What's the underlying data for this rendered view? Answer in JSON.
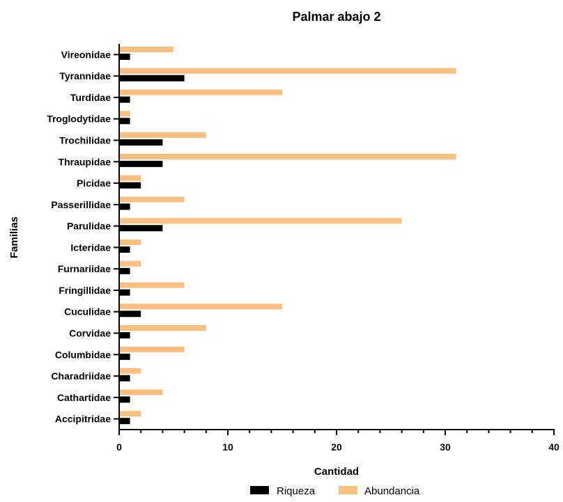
{
  "chart_data": {
    "type": "bar",
    "orientation": "horizontal",
    "title": "Palmar abajo 2",
    "xlabel": "Cantidad",
    "ylabel": "Familias",
    "xlim": [
      0,
      40
    ],
    "xticks": [
      0,
      10,
      20,
      30,
      40
    ],
    "grid": false,
    "legend_position": "bottom",
    "categories": [
      "Vireonidae",
      "Tyrannidae",
      "Turdidae",
      "Troglodytidae",
      "Trochilidae",
      "Thraupidae",
      "Picidae",
      "Passerillidae",
      "Parulidae",
      "Icteridae",
      "Furnariidae",
      "Fringillidae",
      "Cuculidae",
      "Corvidae",
      "Columbidae",
      "Charadriidae",
      "Cathartidae",
      "Accipitridae"
    ],
    "series": [
      {
        "name": "Riqueza",
        "color": "#000000",
        "values": [
          1,
          6,
          1,
          1,
          4,
          4,
          2,
          1,
          4,
          1,
          1,
          1,
          2,
          1,
          1,
          1,
          1,
          1
        ]
      },
      {
        "name": "Abundancia",
        "color": "#FDBF7F",
        "values": [
          5,
          31,
          15,
          1,
          8,
          31,
          2,
          6,
          26,
          2,
          2,
          6,
          15,
          8,
          6,
          2,
          4,
          2
        ]
      }
    ]
  }
}
